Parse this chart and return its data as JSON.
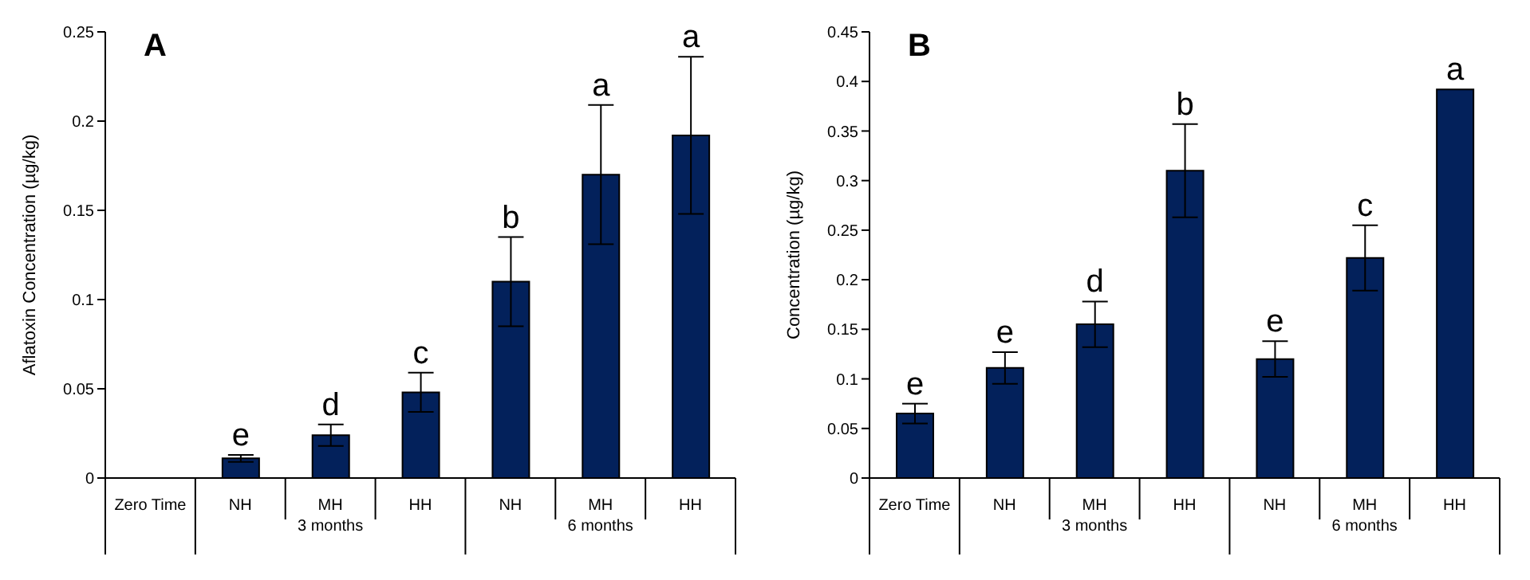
{
  "chart_data": [
    {
      "type": "bar",
      "title": "A",
      "ylabel": "Aflatoxin Concentration (µg/kg)",
      "categories": [
        "Zero Time",
        "NH",
        "MH",
        "HH",
        "NH",
        "MH",
        "HH"
      ],
      "values": [
        0,
        0.011,
        0.024,
        0.048,
        0.11,
        0.17,
        0.192
      ],
      "errors": [
        null,
        0.002,
        0.006,
        0.011,
        0.025,
        0.039,
        0.044
      ],
      "value_labels": [
        null,
        "e",
        "d",
        "c",
        "b",
        "a",
        "a"
      ],
      "color": "#03215b",
      "ylim": [
        0,
        0.25
      ],
      "yticks": [
        0,
        0.05,
        0.1,
        0.15,
        0.2,
        0.25
      ],
      "grid": false,
      "legend": false,
      "annotations": [
        "3 months",
        "6 months"
      ]
    },
    {
      "type": "bar",
      "title": "B",
      "ylabel": "Concentration (µg/kg)",
      "categories": [
        "Zero Time",
        "NH",
        "MH",
        "HH",
        "NH",
        "MH",
        "HH"
      ],
      "values": [
        0.065,
        0.111,
        0.155,
        0.31,
        0.12,
        0.222,
        0.392
      ],
      "errors": [
        0.01,
        0.016,
        0.023,
        0.047,
        0.018,
        0.033,
        null
      ],
      "value_labels": [
        "e",
        "e",
        "d",
        "b",
        "e",
        "c",
        "a"
      ],
      "color": "#03215b",
      "ylim": [
        0,
        0.45
      ],
      "yticks": [
        0,
        0.05,
        0.1,
        0.15,
        0.2,
        0.25,
        0.3,
        0.35,
        0.4,
        0.45
      ],
      "grid": false,
      "legend": false,
      "annotations": [
        "3 months",
        "6 months"
      ]
    }
  ]
}
